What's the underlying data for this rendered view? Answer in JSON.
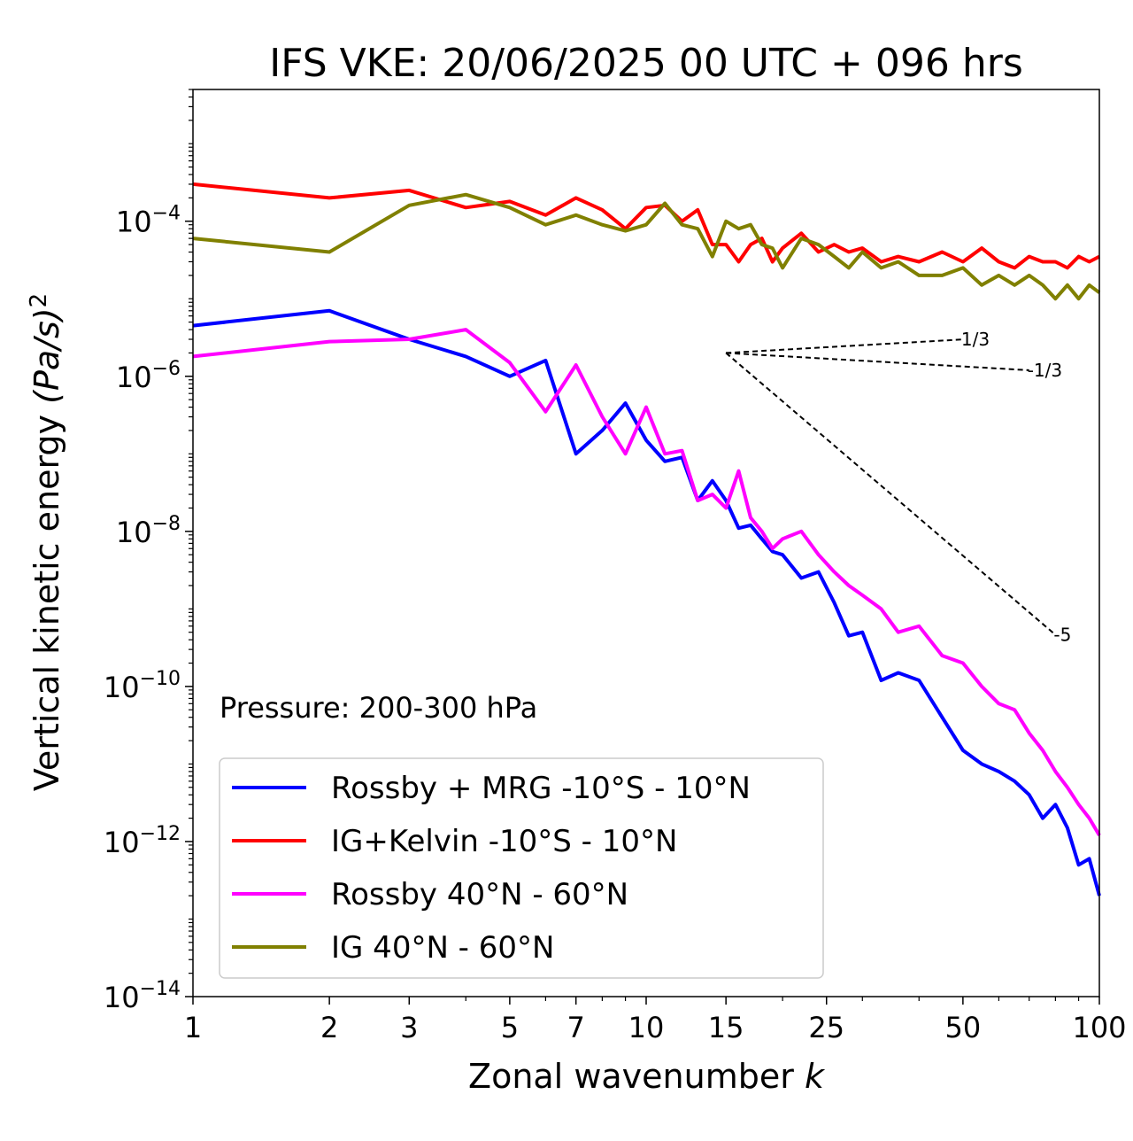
{
  "chart_data": {
    "type": "line",
    "title": "IFS VKE: 20/06/2025 00 UTC + 096 hrs",
    "xlabel": "Zonal wavenumber",
    "xlabel_var": "k",
    "ylabel": "Vertical kinetic energy",
    "ylabel_unit": "(Pa/s)",
    "ylabel_exp": "2",
    "xscale": "log",
    "yscale": "log",
    "xlim": [
      1,
      100
    ],
    "ylim": [
      1e-14,
      0.005
    ],
    "xticks": [
      {
        "v": 1,
        "label": "1"
      },
      {
        "v": 2,
        "label": "2"
      },
      {
        "v": 3,
        "label": "3"
      },
      {
        "v": 5,
        "label": "5"
      },
      {
        "v": 7,
        "label": "7"
      },
      {
        "v": 10,
        "label": "10"
      },
      {
        "v": 15,
        "label": "15"
      },
      {
        "v": 25,
        "label": "25"
      },
      {
        "v": 50,
        "label": "50"
      },
      {
        "v": 100,
        "label": "100"
      }
    ],
    "yticks": [
      {
        "v": 0.0001,
        "exp": "−4"
      },
      {
        "v": 1e-06,
        "exp": "−6"
      },
      {
        "v": 1e-08,
        "exp": "−8"
      },
      {
        "v": 1e-10,
        "exp": "−10"
      },
      {
        "v": 1e-12,
        "exp": "−12"
      },
      {
        "v": 1e-14,
        "exp": "−14"
      }
    ],
    "annotation": "Pressure: 200-300 hPa",
    "legend_position": "lower-left",
    "reference_slopes": [
      {
        "label": "1/3",
        "slope": 0.3333,
        "x0": 15,
        "y0": 2e-06,
        "x1": 50
      },
      {
        "label": "-1/3",
        "slope": -0.3333,
        "x0": 15,
        "y0": 2e-06,
        "x1": 70
      },
      {
        "label": "-5",
        "slope": -5,
        "x0": 15,
        "y0": 2e-06,
        "x1": 80
      }
    ],
    "series": [
      {
        "name": "Rossby + MRG -10°S - 10°N",
        "color": "#0000ff",
        "x": [
          1,
          2,
          3,
          4,
          5,
          6,
          7,
          8,
          9,
          10,
          11,
          12,
          13,
          14,
          15,
          16,
          17,
          18,
          19,
          20,
          22,
          24,
          26,
          28,
          30,
          33,
          36,
          40,
          45,
          50,
          55,
          60,
          65,
          70,
          75,
          80,
          85,
          90,
          95,
          100
        ],
        "values": [
          4.5e-06,
          7e-06,
          3e-06,
          1.8e-06,
          1e-06,
          1.6e-06,
          1e-07,
          2e-07,
          4.5e-07,
          1.5e-07,
          8e-08,
          9e-08,
          2.5e-08,
          4.5e-08,
          2.5e-08,
          1.1e-08,
          1.2e-08,
          8e-09,
          5.5e-09,
          5e-09,
          2.5e-09,
          3e-09,
          1.2e-09,
          4.5e-10,
          5e-10,
          1.2e-10,
          1.5e-10,
          1.2e-10,
          4e-11,
          1.5e-11,
          1e-11,
          8e-12,
          6e-12,
          4e-12,
          2e-12,
          3e-12,
          1.5e-12,
          5e-13,
          6e-13,
          2e-13
        ]
      },
      {
        "name": "IG+Kelvin -10°S - 10°N",
        "color": "#ff0000",
        "x": [
          1,
          2,
          3,
          4,
          5,
          6,
          7,
          8,
          9,
          10,
          11,
          12,
          13,
          14,
          15,
          16,
          17,
          18,
          19,
          20,
          22,
          24,
          26,
          28,
          30,
          33,
          36,
          40,
          45,
          50,
          55,
          60,
          65,
          70,
          75,
          80,
          85,
          90,
          95,
          100
        ],
        "values": [
          0.0003,
          0.0002,
          0.00025,
          0.00015,
          0.00018,
          0.00012,
          0.0002,
          0.00014,
          8e-05,
          0.00015,
          0.00016,
          0.0001,
          0.00014,
          5e-05,
          5e-05,
          3e-05,
          5e-05,
          6e-05,
          3e-05,
          4.5e-05,
          7e-05,
          4e-05,
          5e-05,
          4e-05,
          4.5e-05,
          3e-05,
          3.5e-05,
          3e-05,
          4e-05,
          3e-05,
          4.5e-05,
          3e-05,
          2.5e-05,
          3.5e-05,
          3e-05,
          3e-05,
          2.5e-05,
          3.5e-05,
          3e-05,
          3.5e-05
        ]
      },
      {
        "name": "Rossby 40°N - 60°N",
        "color": "#ff00ff",
        "x": [
          1,
          2,
          3,
          4,
          5,
          6,
          7,
          8,
          9,
          10,
          11,
          12,
          13,
          14,
          15,
          16,
          17,
          18,
          19,
          20,
          22,
          24,
          26,
          28,
          30,
          33,
          36,
          40,
          45,
          50,
          55,
          60,
          65,
          70,
          75,
          80,
          85,
          90,
          95,
          100
        ],
        "values": [
          1.8e-06,
          2.8e-06,
          3e-06,
          4e-06,
          1.5e-06,
          3.5e-07,
          1.4e-06,
          3e-07,
          1e-07,
          4e-07,
          1e-07,
          1.1e-07,
          2.5e-08,
          3e-08,
          2e-08,
          6e-08,
          1.5e-08,
          1e-08,
          6e-09,
          8e-09,
          1e-08,
          5e-09,
          3e-09,
          2e-09,
          1.5e-09,
          1e-09,
          5e-10,
          6e-10,
          2.5e-10,
          2e-10,
          1e-10,
          6e-11,
          5e-11,
          2.5e-11,
          1.5e-11,
          8e-12,
          5e-12,
          3e-12,
          2e-12,
          1.2e-12
        ]
      },
      {
        "name": "IG 40°N - 60°N",
        "color": "#808000",
        "x": [
          1,
          2,
          3,
          4,
          5,
          6,
          7,
          8,
          9,
          10,
          11,
          12,
          13,
          14,
          15,
          16,
          17,
          18,
          19,
          20,
          22,
          24,
          26,
          28,
          30,
          33,
          36,
          40,
          45,
          50,
          55,
          60,
          65,
          70,
          75,
          80,
          85,
          90,
          95,
          100
        ],
        "values": [
          6e-05,
          4e-05,
          0.00016,
          0.00022,
          0.00015,
          9e-05,
          0.00012,
          9e-05,
          7.5e-05,
          9e-05,
          0.00017,
          9e-05,
          8e-05,
          3.5e-05,
          0.0001,
          8e-05,
          9e-05,
          5e-05,
          4.5e-05,
          2.5e-05,
          6e-05,
          5e-05,
          3.5e-05,
          2.5e-05,
          4e-05,
          2.5e-05,
          3e-05,
          2e-05,
          2e-05,
          2.5e-05,
          1.5e-05,
          2e-05,
          1.5e-05,
          2e-05,
          1.5e-05,
          1e-05,
          1.5e-05,
          1e-05,
          1.5e-05,
          1.2e-05
        ]
      }
    ]
  }
}
